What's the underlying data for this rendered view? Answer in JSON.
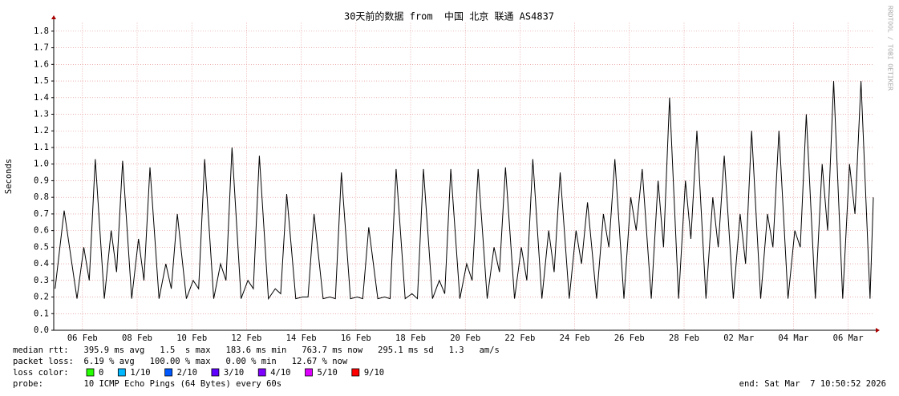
{
  "chart_data": {
    "type": "line",
    "title": "30天前的数据 from  中国 北京 联通 AS4837",
    "y_label": "Seconds",
    "watermark": "RRDTOOL / TOBI OETIKER",
    "color": "#000000",
    "grid": true,
    "xlim": [
      5.45,
      35.45
    ],
    "xticks": [
      {
        "value": 6.5,
        "label": "06 Feb"
      },
      {
        "value": 8.5,
        "label": "08 Feb"
      },
      {
        "value": 10.5,
        "label": "10 Feb"
      },
      {
        "value": 12.5,
        "label": "12 Feb"
      },
      {
        "value": 14.5,
        "label": "14 Feb"
      },
      {
        "value": 16.5,
        "label": "16 Feb"
      },
      {
        "value": 18.5,
        "label": "18 Feb"
      },
      {
        "value": 20.5,
        "label": "20 Feb"
      },
      {
        "value": 22.5,
        "label": "22 Feb"
      },
      {
        "value": 24.5,
        "label": "24 Feb"
      },
      {
        "value": 26.5,
        "label": "26 Feb"
      },
      {
        "value": 28.5,
        "label": "28 Feb"
      },
      {
        "value": 30.5,
        "label": "02 Mar"
      },
      {
        "value": 32.5,
        "label": "04 Mar"
      },
      {
        "value": 34.5,
        "label": "06 Mar"
      }
    ],
    "ylim": [
      0,
      1.85
    ],
    "yticks": [
      {
        "value": 0,
        "label": "0.0"
      },
      0.1,
      0.2,
      0.3,
      0.4,
      0.5,
      0.6,
      0.7,
      0.8,
      0.9,
      {
        "value": 1,
        "label": "1.0"
      },
      1.1,
      1.2,
      1.3,
      1.4,
      1.5,
      1.6,
      1.7,
      1.8
    ],
    "x": [
      5.5,
      5.83,
      6.3,
      6.55,
      6.75,
      6.97,
      7.3,
      7.55,
      7.75,
      7.97,
      8.3,
      8.55,
      8.75,
      8.97,
      9.3,
      9.55,
      9.75,
      9.97,
      10.3,
      10.55,
      10.75,
      10.97,
      11.3,
      11.55,
      11.75,
      11.97,
      12.3,
      12.55,
      12.75,
      12.97,
      13.3,
      13.55,
      13.75,
      13.97,
      14.3,
      14.55,
      14.75,
      14.97,
      15.3,
      15.55,
      15.75,
      15.97,
      16.3,
      16.55,
      16.75,
      16.97,
      17.3,
      17.55,
      17.75,
      17.97,
      18.3,
      18.55,
      18.75,
      18.97,
      19.3,
      19.55,
      19.75,
      19.97,
      20.3,
      20.55,
      20.75,
      20.97,
      21.3,
      21.55,
      21.75,
      21.97,
      22.3,
      22.55,
      22.75,
      22.97,
      23.3,
      23.55,
      23.75,
      23.97,
      24.3,
      24.55,
      24.75,
      24.97,
      25.3,
      25.55,
      25.75,
      25.97,
      26.3,
      26.55,
      26.75,
      26.97,
      27.3,
      27.55,
      27.75,
      27.97,
      28.3,
      28.55,
      28.75,
      28.97,
      29.3,
      29.55,
      29.75,
      29.97,
      30.3,
      30.55,
      30.75,
      30.97,
      31.3,
      31.55,
      31.75,
      31.97,
      32.3,
      32.55,
      32.75,
      32.97,
      33.3,
      33.55,
      33.75,
      33.97,
      34.3,
      34.55,
      34.75,
      34.97,
      35.3,
      35.42
    ],
    "values": [
      0.25,
      0.72,
      0.19,
      0.5,
      0.3,
      1.03,
      0.19,
      0.6,
      0.35,
      1.02,
      0.19,
      0.55,
      0.3,
      0.98,
      0.19,
      0.4,
      0.25,
      0.7,
      0.19,
      0.3,
      0.25,
      1.03,
      0.19,
      0.4,
      0.3,
      1.1,
      0.19,
      0.3,
      0.25,
      1.05,
      0.19,
      0.25,
      0.22,
      0.82,
      0.19,
      0.2,
      0.2,
      0.7,
      0.19,
      0.2,
      0.19,
      0.95,
      0.19,
      0.2,
      0.19,
      0.62,
      0.19,
      0.2,
      0.19,
      0.97,
      0.19,
      0.22,
      0.19,
      0.97,
      0.19,
      0.3,
      0.22,
      0.97,
      0.19,
      0.4,
      0.3,
      0.97,
      0.19,
      0.5,
      0.35,
      0.98,
      0.19,
      0.5,
      0.3,
      1.03,
      0.19,
      0.6,
      0.35,
      0.95,
      0.19,
      0.6,
      0.4,
      0.77,
      0.19,
      0.7,
      0.5,
      1.03,
      0.19,
      0.8,
      0.6,
      0.97,
      0.19,
      0.9,
      0.5,
      1.4,
      0.19,
      0.9,
      0.55,
      1.2,
      0.19,
      0.8,
      0.5,
      1.05,
      0.19,
      0.7,
      0.4,
      1.2,
      0.19,
      0.7,
      0.5,
      1.2,
      0.19,
      0.6,
      0.5,
      1.3,
      0.19,
      1.0,
      0.6,
      1.5,
      0.19,
      1.0,
      0.7,
      1.5,
      0.19,
      0.8
    ],
    "footer_lines": [
      "median rtt:   395.9 ms avg   1.5  s max   183.6 ms min   763.7 ms now   295.1 ms sd   1.3   am/s",
      "packet loss:  6.19 % avg   100.00 % max   0.00 % min   12.67 % now"
    ],
    "loss_color_label": "loss color:",
    "loss_colors": [
      {
        "label": "0",
        "color": "#26ff00"
      },
      {
        "label": "1/10",
        "color": "#00b8ff"
      },
      {
        "label": "2/10",
        "color": "#0059ff"
      },
      {
        "label": "3/10",
        "color": "#5e00ff"
      },
      {
        "label": "4/10",
        "color": "#7e00ff"
      },
      {
        "label": "5/10",
        "color": "#dd00ff"
      },
      {
        "label": "9/10",
        "color": "#ff0000"
      }
    ],
    "probe": "probe:        10 ICMP Echo Pings (64 Bytes) every 60s",
    "end": "end: Sat Mar  7 10:50:52 2026"
  }
}
